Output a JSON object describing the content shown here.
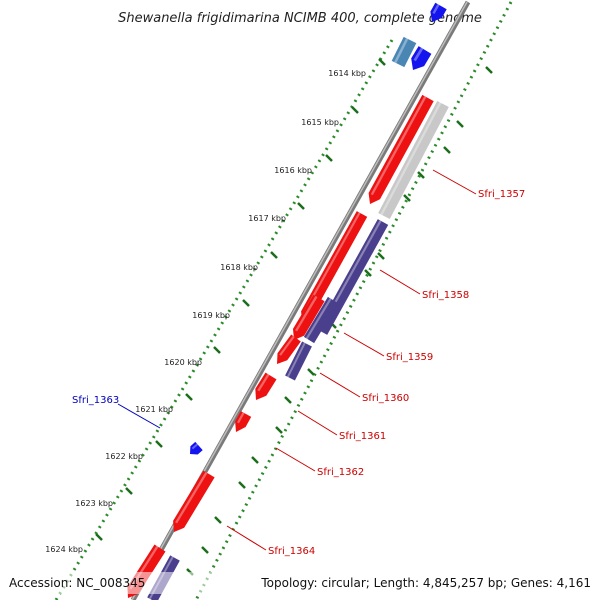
{
  "title": "Shewanella frigidimarina NCIMB 400, complete genome",
  "accession": "Accession: NC_008345",
  "topology": "Topology: circular; Length: 4,845,257 bp; Genes: 4,161",
  "colors": {
    "backbone": "#8a8a8a",
    "dots": "#2a8a2a",
    "tick": "#1a6e1a",
    "gene_red": "#ee1111",
    "gene_navy": "#4a3f8c",
    "gene_grey": "#c8c8c8",
    "gene_blue": "#1414ee",
    "gene_steel": "#4a86b4",
    "label_red": "#cc0000",
    "label_blue": "#0000bb"
  },
  "kbp_markers": [
    {
      "text": "1614 kbp"
    },
    {
      "text": "1615 kbp"
    },
    {
      "text": "1616 kbp"
    },
    {
      "text": "1617 kbp"
    },
    {
      "text": "1618 kbp"
    },
    {
      "text": "1619 kbp"
    },
    {
      "text": "1620 kbp"
    },
    {
      "text": "1621 kbp"
    },
    {
      "text": "1622 kbp"
    },
    {
      "text": "1623 kbp"
    },
    {
      "text": "1624 kbp"
    }
  ],
  "gene_labels": [
    {
      "text": "Sfri_1357",
      "color": "label_red"
    },
    {
      "text": "Sfri_1358",
      "color": "label_red"
    },
    {
      "text": "Sfri_1359",
      "color": "label_red"
    },
    {
      "text": "Sfri_1360",
      "color": "label_red"
    },
    {
      "text": "Sfri_1361",
      "color": "label_red"
    },
    {
      "text": "Sfri_1362",
      "color": "label_red"
    },
    {
      "text": "Sfri_1364",
      "color": "label_red"
    },
    {
      "text": "Sfri_1363",
      "color": "label_blue"
    }
  ],
  "genes": [
    {
      "color": "gene_blue"
    },
    {
      "color": "gene_blue"
    },
    {
      "color": "gene_steel"
    },
    {
      "color": "gene_red"
    },
    {
      "color": "gene_grey"
    },
    {
      "color": "gene_red"
    },
    {
      "color": "gene_navy"
    },
    {
      "color": "gene_red"
    },
    {
      "color": "gene_navy"
    },
    {
      "color": "gene_red"
    },
    {
      "color": "gene_navy"
    },
    {
      "color": "gene_red"
    },
    {
      "color": "gene_red"
    },
    {
      "color": "gene_blue"
    },
    {
      "color": "gene_red"
    },
    {
      "color": "gene_red"
    },
    {
      "color": "gene_navy"
    }
  ]
}
